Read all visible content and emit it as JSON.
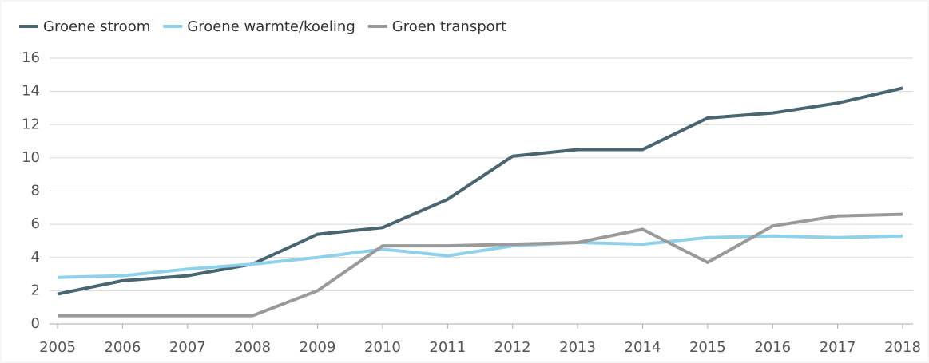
{
  "chart_data": {
    "type": "line",
    "categories": [
      "2005",
      "2006",
      "2007",
      "2008",
      "2009",
      "2010",
      "2011",
      "2012",
      "2013",
      "2014",
      "2015",
      "2016",
      "2017",
      "2018"
    ],
    "series": [
      {
        "name": "Groene stroom",
        "color": "#4a6572",
        "values": [
          1.8,
          2.6,
          2.9,
          3.6,
          5.4,
          5.8,
          7.5,
          10.1,
          10.5,
          10.5,
          12.4,
          12.7,
          13.3,
          14.2
        ]
      },
      {
        "name": "Groene warmte/koeling",
        "color": "#8fd1ea",
        "values": [
          2.8,
          2.9,
          3.3,
          3.6,
          4.0,
          4.5,
          4.1,
          4.7,
          4.9,
          4.8,
          5.2,
          5.3,
          5.2,
          5.3
        ]
      },
      {
        "name": "Groen transport",
        "color": "#9a9a9a",
        "values": [
          0.5,
          0.5,
          0.5,
          0.5,
          2.0,
          4.7,
          4.7,
          4.8,
          4.9,
          5.7,
          3.7,
          5.9,
          6.5,
          6.6
        ]
      }
    ],
    "ylim": [
      0,
      16
    ],
    "yticks": [
      0,
      2,
      4,
      6,
      8,
      10,
      12,
      14,
      16
    ],
    "grid": true,
    "legend": "top-left"
  }
}
